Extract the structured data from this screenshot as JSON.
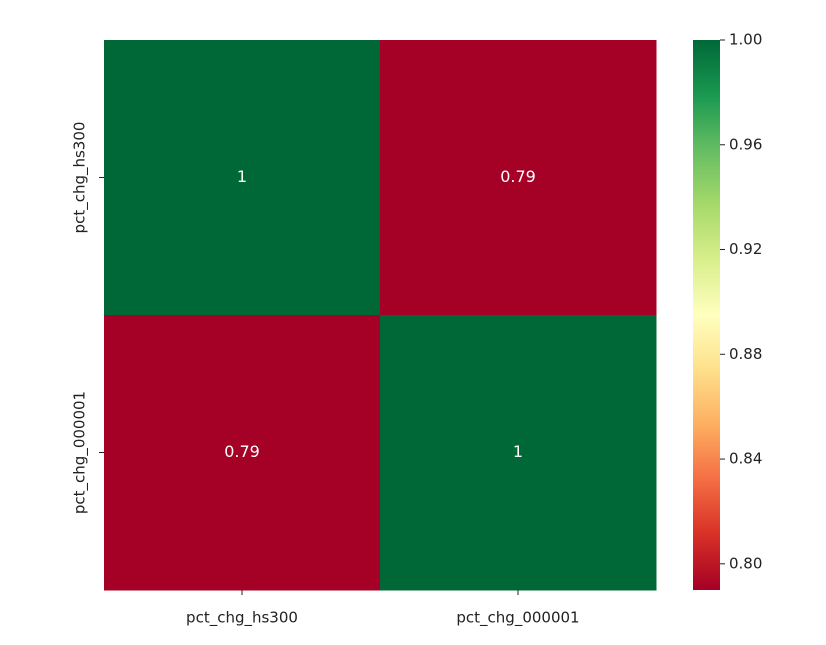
{
  "chart_data": {
    "type": "heatmap",
    "x_categories": [
      "pct_chg_hs300",
      "pct_chg_000001"
    ],
    "y_categories": [
      "pct_chg_hs300",
      "pct_chg_000001"
    ],
    "values": [
      [
        1,
        0.79
      ],
      [
        0.79,
        1
      ]
    ],
    "colormap": [
      "#a50026",
      "#d73027",
      "#f46d43",
      "#fdae61",
      "#fee08b",
      "#ffffbf",
      "#d9ef8b",
      "#a6d96a",
      "#66bd63",
      "#1a9850",
      "#006837"
    ],
    "zlim": [
      0.79,
      1.0
    ],
    "zticks": [
      {
        "value": 0.8,
        "label": "0.80"
      },
      {
        "value": 0.84,
        "label": "0.84"
      },
      {
        "value": 0.88,
        "label": "0.88"
      },
      {
        "value": 0.92,
        "label": "0.92"
      },
      {
        "value": 0.96,
        "label": "0.96"
      },
      {
        "value": 1.0,
        "label": "1.00"
      }
    ]
  }
}
